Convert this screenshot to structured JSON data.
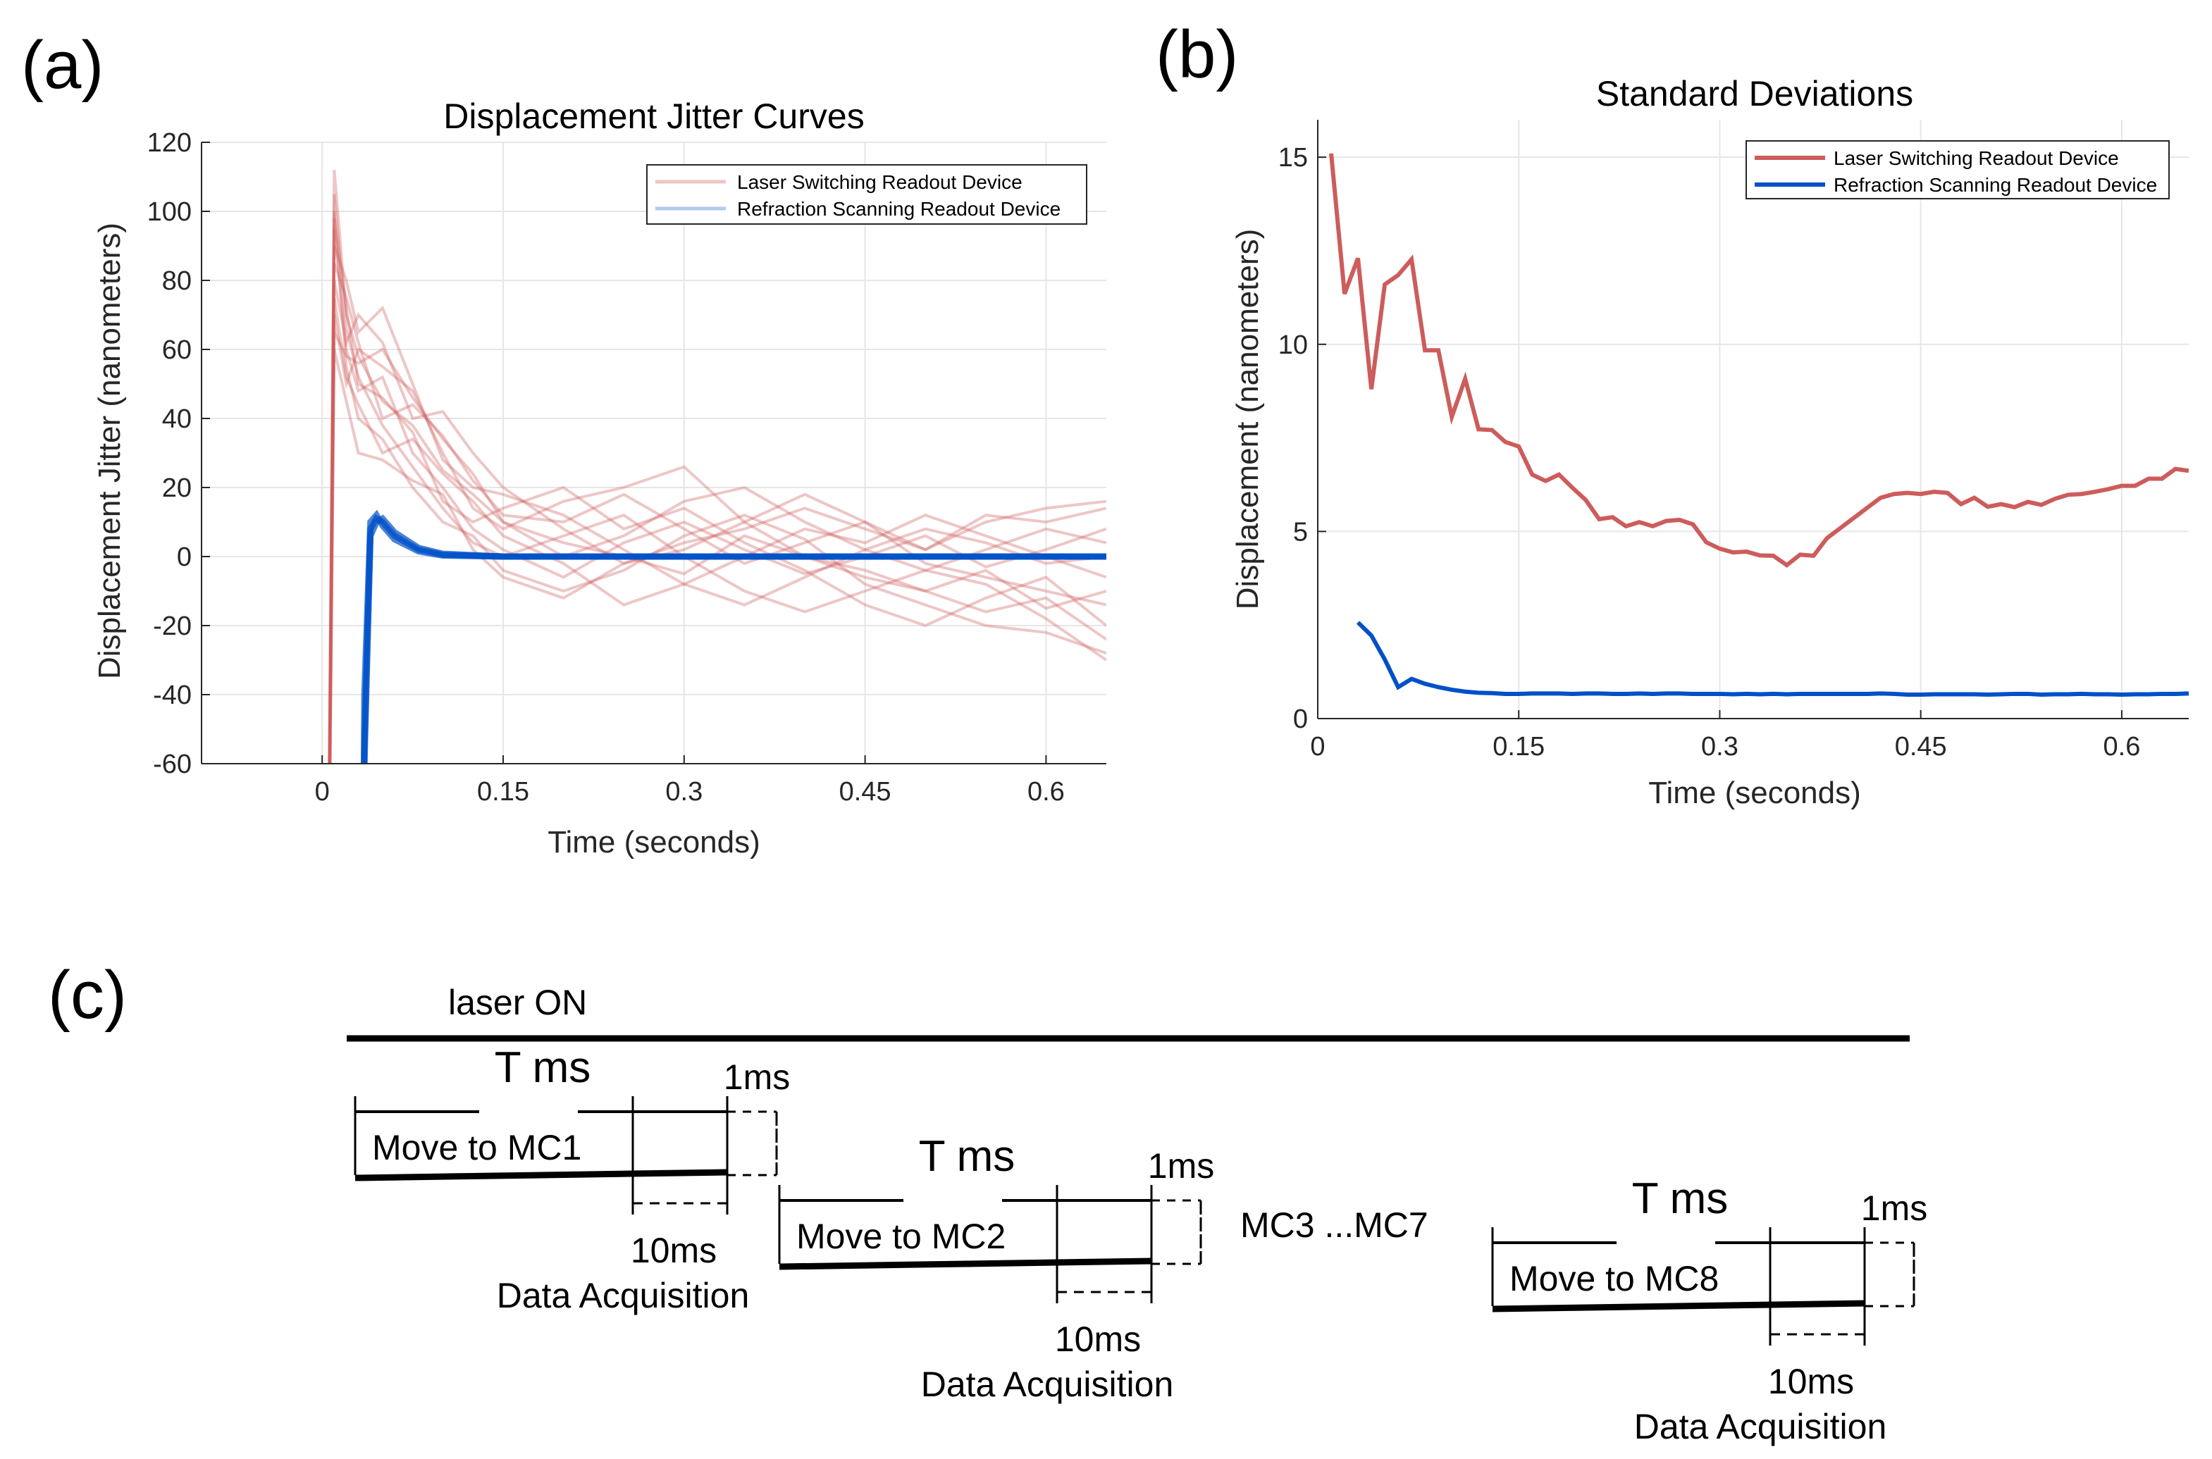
{
  "panel_labels": {
    "a": "(a)",
    "b": "(b)",
    "c": "(c)"
  },
  "colors": {
    "red": "#cd5c5c",
    "blue": "#0050c8"
  },
  "chart_data": [
    {
      "type": "line",
      "title": "Displacement Jitter Curves",
      "xlabel": "Time (seconds)",
      "ylabel": "Displacement Jitter (nanometers)",
      "xlim": [
        -0.1,
        0.65
      ],
      "ylim": [
        -60,
        120
      ],
      "xticks": [
        0,
        0.15,
        0.3,
        0.45,
        0.6
      ],
      "xtick_labels": [
        "0",
        "0.15",
        "0.3",
        "0.45",
        "0.6"
      ],
      "yticks": [
        -60,
        -40,
        -20,
        0,
        20,
        40,
        60,
        80,
        100,
        120
      ],
      "ytick_labels": [
        "-60",
        "-40",
        "-20",
        "0",
        "20",
        "40",
        "60",
        "80",
        "100",
        "120"
      ],
      "grid": true,
      "legend_position": "top-right",
      "legend": [
        "Laser Switching Readout Device",
        "Refraction Scanning Readout Device"
      ],
      "red_t": [
        0,
        0.01,
        0.02,
        0.03,
        0.05,
        0.075,
        0.1,
        0.125,
        0.15,
        0.2,
        0.25,
        0.3,
        0.35,
        0.4,
        0.45,
        0.5,
        0.55,
        0.6,
        0.65
      ],
      "red_series": [
        [
          -300,
          112,
          70,
          58,
          45,
          38,
          25,
          18,
          10,
          4,
          0,
          -5,
          6,
          0,
          -6,
          -10,
          -4,
          -15,
          -10
        ],
        [
          -300,
          95,
          60,
          48,
          52,
          30,
          20,
          8,
          2,
          -6,
          4,
          10,
          2,
          -5,
          0,
          6,
          -3,
          2,
          8
        ],
        [
          -300,
          85,
          75,
          62,
          40,
          44,
          35,
          22,
          12,
          10,
          18,
          8,
          -2,
          4,
          10,
          2,
          12,
          10,
          14
        ],
        [
          -300,
          100,
          55,
          40,
          34,
          20,
          10,
          6,
          -4,
          -10,
          -4,
          6,
          12,
          5,
          -8,
          -14,
          -20,
          -22,
          -28
        ],
        [
          -300,
          70,
          50,
          60,
          55,
          48,
          30,
          14,
          8,
          16,
          20,
          26,
          10,
          0,
          -4,
          -10,
          -16,
          -12,
          -24
        ],
        [
          -300,
          90,
          80,
          65,
          72,
          50,
          28,
          20,
          18,
          12,
          2,
          -8,
          -14,
          -6,
          2,
          8,
          4,
          -2,
          0
        ],
        [
          -300,
          60,
          45,
          30,
          28,
          22,
          18,
          2,
          -6,
          -12,
          -2,
          4,
          8,
          14,
          8,
          2,
          10,
          14,
          16
        ],
        [
          -300,
          105,
          66,
          52,
          38,
          26,
          14,
          4,
          0,
          6,
          12,
          0,
          -10,
          -16,
          -10,
          -4,
          -8,
          -18,
          -30
        ],
        [
          -300,
          80,
          62,
          70,
          62,
          40,
          42,
          30,
          20,
          8,
          -2,
          2,
          10,
          18,
          10,
          -2,
          -6,
          -10,
          -14
        ],
        [
          -300,
          75,
          52,
          44,
          30,
          34,
          24,
          16,
          6,
          -2,
          -14,
          -8,
          0,
          8,
          4,
          12,
          6,
          0,
          -6
        ],
        [
          -300,
          98,
          72,
          50,
          46,
          36,
          16,
          10,
          14,
          20,
          8,
          14,
          4,
          -4,
          -14,
          -20,
          -12,
          -6,
          -20
        ],
        [
          -300,
          65,
          58,
          56,
          60,
          46,
          34,
          24,
          10,
          0,
          6,
          16,
          20,
          10,
          2,
          -4,
          2,
          8,
          4
        ]
      ],
      "blue_t": [
        0.03,
        0.035,
        0.04,
        0.045,
        0.05,
        0.06,
        0.08,
        0.1,
        0.15,
        0.65
      ],
      "blue_series": [
        [
          -300,
          -60,
          8,
          11,
          10,
          6,
          2,
          0.5,
          0,
          0
        ],
        [
          -300,
          -40,
          10,
          12,
          9,
          5,
          1.5,
          0.3,
          0,
          0
        ],
        [
          -300,
          -55,
          6,
          10,
          11,
          7,
          2.5,
          0.8,
          0,
          0
        ]
      ]
    },
    {
      "type": "line",
      "title": "Standard Deviations",
      "xlabel": "Time (seconds)",
      "ylabel": "Displacement (nanometers)",
      "xlim": [
        0,
        0.65
      ],
      "ylim": [
        0,
        16
      ],
      "xticks": [
        0,
        0.15,
        0.3,
        0.45,
        0.6
      ],
      "xtick_labels": [
        "0",
        "0.15",
        "0.3",
        "0.45",
        "0.6"
      ],
      "yticks": [
        0,
        5,
        10,
        15
      ],
      "ytick_labels": [
        "0",
        "5",
        "10",
        "15"
      ],
      "grid": true,
      "legend_position": "top-right",
      "legend": [
        "Laser Switching Readout Device",
        "Refraction Scanning Readout Device"
      ],
      "red_t_start": 0.01,
      "blue_t_start": 0.03,
      "t_step": 0.01,
      "red_values": [
        15.1,
        11.35,
        12.3,
        8.8,
        11.6,
        11.85,
        12.27,
        9.84,
        9.84,
        8.06,
        9.08,
        7.73,
        7.71,
        7.39,
        7.27,
        6.52,
        6.35,
        6.52,
        6.17,
        5.84,
        5.33,
        5.38,
        5.14,
        5.25,
        5.14,
        5.28,
        5.31,
        5.19,
        4.71,
        4.54,
        4.44,
        4.46,
        4.36,
        4.35,
        4.1,
        4.38,
        4.35,
        4.82,
        5.09,
        5.36,
        5.63,
        5.9,
        6.0,
        6.03,
        6.0,
        6.06,
        6.03,
        5.73,
        5.9,
        5.66,
        5.73,
        5.65,
        5.79,
        5.71,
        5.87,
        5.98,
        6.0,
        6.06,
        6.13,
        6.22,
        6.22,
        6.41,
        6.41,
        6.67,
        6.62
      ],
      "blue_values": [
        2.57,
        2.22,
        1.58,
        0.84,
        1.06,
        0.93,
        0.84,
        0.77,
        0.72,
        0.69,
        0.68,
        0.66,
        0.66,
        0.67,
        0.67,
        0.67,
        0.66,
        0.67,
        0.67,
        0.66,
        0.66,
        0.67,
        0.66,
        0.67,
        0.67,
        0.66,
        0.66,
        0.66,
        0.65,
        0.66,
        0.65,
        0.66,
        0.65,
        0.66,
        0.66,
        0.66,
        0.66,
        0.66,
        0.66,
        0.67,
        0.66,
        0.64,
        0.64,
        0.65,
        0.65,
        0.65,
        0.65,
        0.64,
        0.65,
        0.66,
        0.66,
        0.64,
        0.65,
        0.65,
        0.66,
        0.65,
        0.65,
        0.64,
        0.65,
        0.65,
        0.66,
        0.66,
        0.67
      ]
    }
  ],
  "diagram": {
    "laser_label": "laser ON",
    "ellipsis_label": "MC3 ...MC7",
    "blocks": [
      {
        "move_label": "Move to MC1",
        "period_label": "T ms",
        "gap_label": "1ms",
        "acq_time_label": "10ms",
        "acq_label": "Data Acquisition"
      },
      {
        "move_label": "Move to MC2",
        "period_label": "T ms",
        "gap_label": "1ms",
        "acq_time_label": "10ms",
        "acq_label": "Data Acquisition"
      },
      {
        "move_label": "Move to MC8",
        "period_label": "T ms",
        "gap_label": "1ms",
        "acq_time_label": "10ms",
        "acq_label": "Data Acquisition"
      }
    ]
  }
}
